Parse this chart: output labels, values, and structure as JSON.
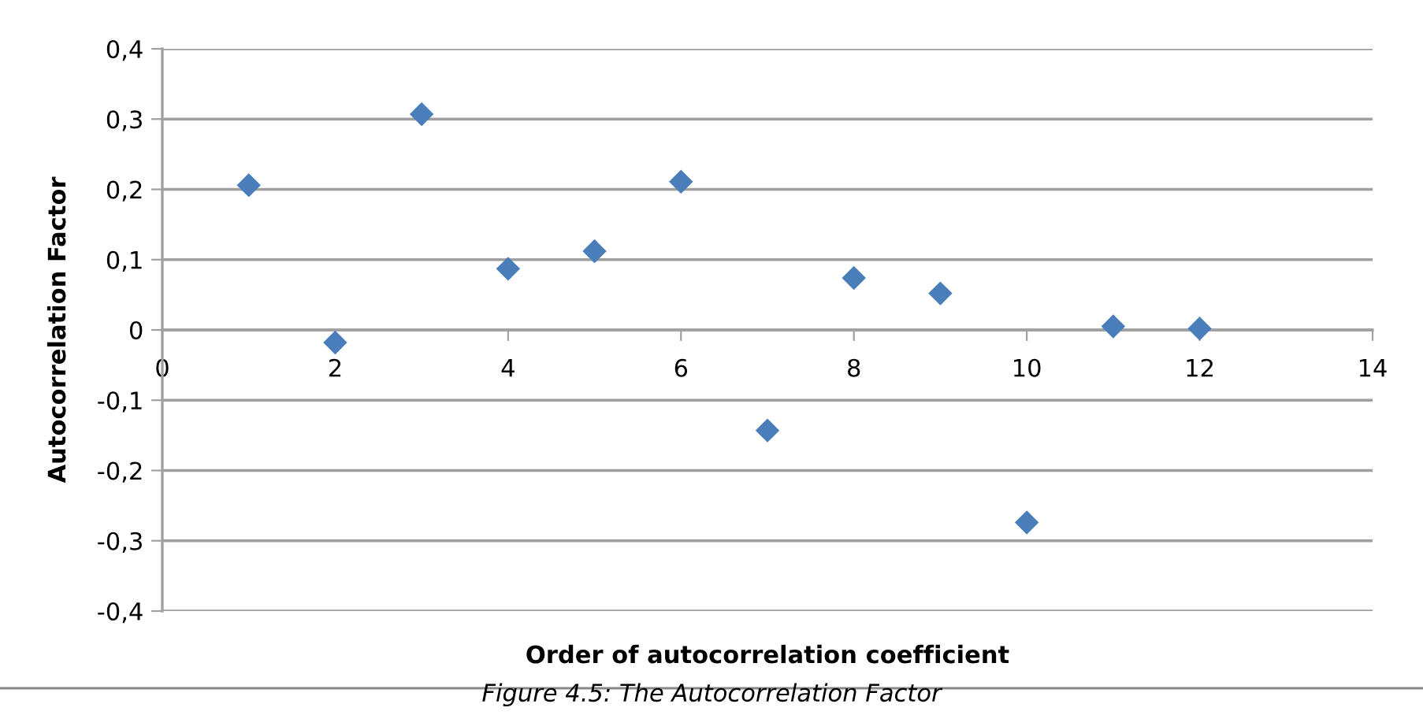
{
  "chart_data": {
    "type": "scatter",
    "xlabel": "Order of autocorrelation coefficient",
    "ylabel": "Autocorrelation Factor",
    "annotations": [
      "Figure 4.5: The Autocorrelation Factor"
    ],
    "series": [
      {
        "color": "#4a7ebb",
        "x": [
          1,
          2,
          3,
          4,
          5,
          6,
          7,
          8,
          9,
          10,
          11,
          12
        ],
        "values": [
          0.206,
          -0.018,
          0.307,
          0.087,
          0.112,
          0.211,
          -0.143,
          0.074,
          0.052,
          -0.274,
          0.005,
          0.002
        ]
      }
    ],
    "marker": "diamond",
    "grid": "y",
    "legend": false,
    "xlim": [
      0,
      14
    ],
    "xticks": [
      0,
      2,
      4,
      6,
      8,
      10,
      12,
      14
    ],
    "ylim": [
      -0.4,
      0.4
    ],
    "yticks": [
      {
        "value": -0.4,
        "label": "-0,4"
      },
      {
        "value": -0.3,
        "label": "-0,3"
      },
      {
        "value": -0.2,
        "label": "-0,2"
      },
      {
        "value": -0.1,
        "label": "-0,1"
      },
      0,
      {
        "value": 0.1,
        "label": "0,1"
      },
      {
        "value": 0.2,
        "label": "0,2"
      },
      {
        "value": 0.3,
        "label": "0,3"
      },
      {
        "value": 0.4,
        "label": "0,4"
      }
    ]
  }
}
